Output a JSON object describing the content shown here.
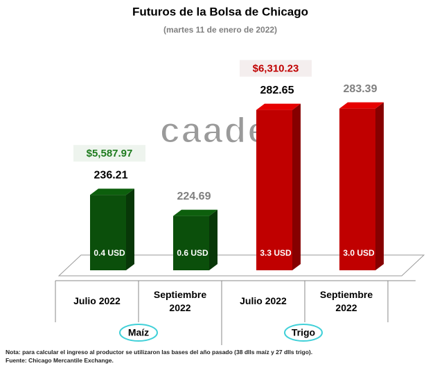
{
  "chart_data": {
    "type": "bar3d",
    "title": "Futuros de la Bolsa de Chicago",
    "subtitle": "(martes 11 de enero de 2022)",
    "categories": [
      "Julio 2022",
      "Septiembre 2022",
      "Julio 2022",
      "Septiembre 2022"
    ],
    "values": [
      236.21,
      224.69,
      282.65,
      283.39
    ],
    "colors": [
      "#0b4f0b",
      "#0b4f0b",
      "#c00000",
      "#c00000"
    ],
    "label_colors": [
      "#000000",
      "#7f7f7f",
      "#000000",
      "#7f7f7f"
    ],
    "bar_notes": [
      "0.4 USD",
      "0.6 USD",
      "3.3 USD",
      "3.0 USD"
    ],
    "price_labels": [
      "$5,587.97",
      null,
      "$6,310.23",
      null
    ],
    "price_colors": [
      "#1e7b1e",
      null,
      "#c00000",
      null
    ],
    "groups": [
      "Maíz",
      "Trigo"
    ],
    "ylim": [
      195,
      320
    ],
    "watermark": "caades",
    "notes": [
      "Nota: para calcular el ingreso al productor se utilizaron las bases del año pasado (38 dlls maíz y 27 dlls trigo).",
      "Fuente: Chicago Mercantile Exchange."
    ]
  }
}
